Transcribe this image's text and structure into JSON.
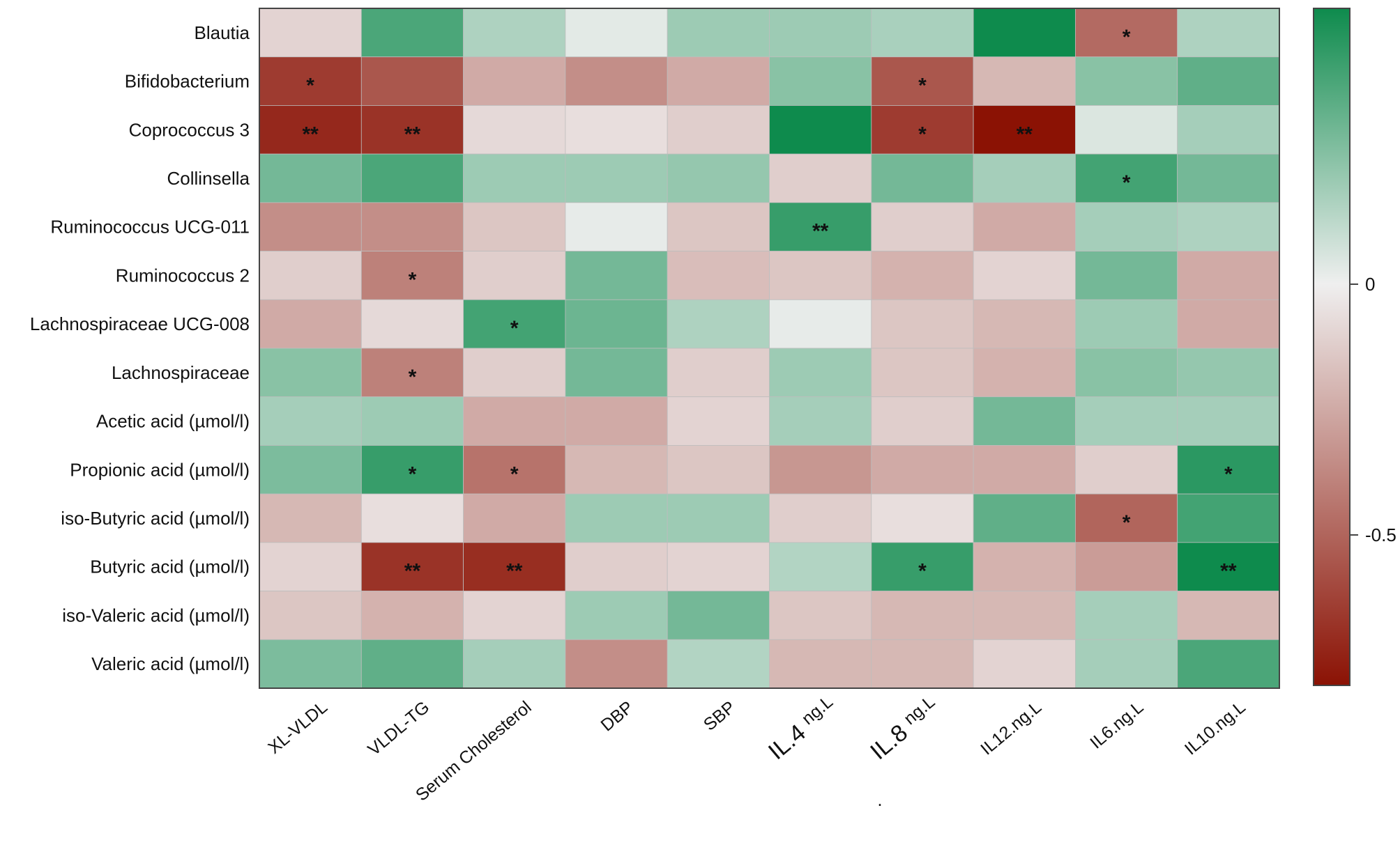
{
  "chart_data": {
    "type": "heatmap",
    "title": "",
    "rows": [
      "Blautia",
      "Bifidobacterium",
      "Coprococcus 3",
      "Collinsella",
      "Ruminococcus UCG-011",
      "Ruminococcus 2",
      "Lachnospiraceae UCG-008",
      "Lachnospiraceae",
      "Acetic acid (µmol/l)",
      "Propionic acid (µmol/l)",
      "iso-Butyric acid (µmol/l)",
      "Butyric acid (µmol/l)",
      "iso-Valeric acid (µmol/l)",
      "Valeric acid (µmol/l)"
    ],
    "columns": [
      {
        "main": "XL-VLDL",
        "suffix": ""
      },
      {
        "main": "VLDL-TG",
        "suffix": ""
      },
      {
        "main": "Serum Cholesterol",
        "suffix": ""
      },
      {
        "main": "DBP",
        "suffix": ""
      },
      {
        "main": "SBP",
        "suffix": ""
      },
      {
        "main": "IL.4",
        "suffix": "ng.L"
      },
      {
        "main": "IL.8",
        "suffix": "ng.L"
      },
      {
        "main": "IL12.ng.L",
        "suffix": ""
      },
      {
        "main": "IL6.ng.L",
        "suffix": ""
      },
      {
        "main": "IL10.ng.L",
        "suffix": ""
      }
    ],
    "values": [
      [
        -0.1,
        0.4,
        0.16,
        0.03,
        0.2,
        0.2,
        0.17,
        0.55,
        -0.48,
        0.16
      ],
      [
        -0.65,
        -0.55,
        -0.25,
        -0.35,
        -0.25,
        0.25,
        -0.55,
        -0.2,
        0.25,
        0.35
      ],
      [
        -0.72,
        -0.68,
        -0.08,
        -0.06,
        -0.12,
        0.55,
        -0.65,
        -0.8,
        0.05,
        0.18
      ],
      [
        0.3,
        0.4,
        0.2,
        0.2,
        0.22,
        -0.12,
        0.3,
        0.18,
        0.42,
        0.3
      ],
      [
        -0.35,
        -0.35,
        -0.15,
        0.02,
        -0.15,
        0.45,
        -0.12,
        -0.25,
        0.18,
        0.16
      ],
      [
        -0.12,
        -0.4,
        -0.12,
        0.3,
        -0.18,
        -0.15,
        -0.22,
        -0.1,
        0.3,
        -0.25
      ],
      [
        -0.25,
        -0.08,
        0.42,
        0.32,
        0.16,
        0.02,
        -0.15,
        -0.2,
        0.2,
        -0.25
      ],
      [
        0.25,
        -0.4,
        -0.12,
        0.3,
        -0.12,
        0.2,
        -0.15,
        -0.22,
        0.25,
        0.22
      ],
      [
        0.18,
        0.2,
        -0.25,
        -0.25,
        -0.1,
        0.18,
        -0.12,
        0.3,
        0.18,
        0.18
      ],
      [
        0.28,
        0.45,
        -0.45,
        -0.2,
        -0.15,
        -0.32,
        -0.25,
        -0.25,
        -0.12,
        0.48
      ],
      [
        -0.2,
        -0.06,
        -0.25,
        0.2,
        0.2,
        -0.12,
        -0.06,
        0.35,
        -0.5,
        0.42
      ],
      [
        -0.1,
        -0.68,
        -0.7,
        -0.12,
        -0.1,
        0.15,
        0.45,
        -0.22,
        -0.3,
        0.55
      ],
      [
        -0.15,
        -0.22,
        -0.1,
        0.2,
        0.3,
        -0.15,
        -0.2,
        -0.2,
        0.18,
        -0.2
      ],
      [
        0.28,
        0.35,
        0.18,
        -0.35,
        0.15,
        -0.2,
        -0.2,
        -0.1,
        0.18,
        0.4
      ]
    ],
    "significance": [
      [
        "",
        "",
        "",
        "",
        "",
        "",
        "",
        "",
        "*",
        ""
      ],
      [
        "*",
        "",
        "",
        "",
        "",
        "",
        "*",
        "",
        "",
        ""
      ],
      [
        "**",
        "**",
        "",
        "",
        "",
        "",
        "*",
        "**",
        "",
        ""
      ],
      [
        "",
        "",
        "",
        "",
        "",
        "",
        "",
        "",
        "*",
        ""
      ],
      [
        "",
        "",
        "",
        "",
        "",
        "**",
        "",
        "",
        "",
        ""
      ],
      [
        "",
        "*",
        "",
        "",
        "",
        "",
        "",
        "",
        "",
        ""
      ],
      [
        "",
        "",
        "*",
        "",
        "",
        "",
        "",
        "",
        "",
        ""
      ],
      [
        "",
        "*",
        "",
        "",
        "",
        "",
        "",
        "",
        "",
        ""
      ],
      [
        "",
        "",
        "",
        "",
        "",
        "",
        "",
        "",
        "",
        ""
      ],
      [
        "",
        "*",
        "*",
        "",
        "",
        "",
        "",
        "",
        "",
        "*"
      ],
      [
        "",
        "",
        "",
        "",
        "",
        "",
        "",
        "",
        "*",
        ""
      ],
      [
        "",
        "**",
        "**",
        "",
        "",
        "",
        "*",
        "",
        "",
        "**"
      ],
      [
        "",
        "",
        "",
        "",
        "",
        "",
        "",
        "",
        "",
        ""
      ],
      [
        "",
        "",
        "",
        "",
        "",
        "",
        "",
        "",
        "",
        ""
      ]
    ],
    "color_scale": {
      "min": -0.8,
      "max": 0.55,
      "negative_color": "#8b1204",
      "zero_color": "#efefef",
      "positive_color": "#0e8b4d",
      "ticks": [
        {
          "value": 0,
          "label": "0"
        },
        {
          "value": -0.5,
          "label": "-0.5"
        }
      ]
    },
    "annotations": [
      "."
    ]
  }
}
